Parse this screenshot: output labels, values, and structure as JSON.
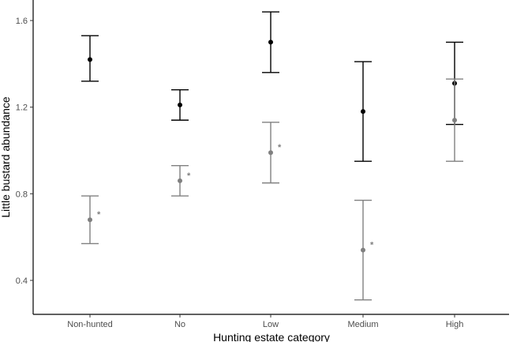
{
  "chart_data": {
    "type": "scatter",
    "title": "",
    "xlabel": "Hunting estate category",
    "ylabel": "Little bustard abundance",
    "categories": [
      "Non-hunted",
      "No",
      "Low",
      "Medium",
      "High"
    ],
    "ylim": [
      0.35,
      1.65
    ],
    "yticks": [
      0.4,
      0.8,
      1.2,
      1.6
    ],
    "grid": false,
    "legend": "none",
    "series": [
      {
        "color": "#000000",
        "values": [
          1.42,
          1.21,
          1.5,
          1.18,
          1.31
        ],
        "lower": [
          1.32,
          1.14,
          1.36,
          0.95,
          1.12
        ],
        "upper": [
          1.53,
          1.28,
          1.64,
          1.41,
          1.5
        ],
        "annotations": [
          "",
          "",
          "",
          "",
          ""
        ]
      },
      {
        "color": "#808080",
        "values": [
          0.68,
          0.86,
          0.99,
          0.54,
          1.14
        ],
        "lower": [
          0.57,
          0.79,
          0.85,
          0.31,
          0.95
        ],
        "upper": [
          0.79,
          0.93,
          1.13,
          0.77,
          1.33
        ],
        "annotations": [
          "*",
          "*",
          "*",
          "*",
          ""
        ]
      }
    ]
  }
}
